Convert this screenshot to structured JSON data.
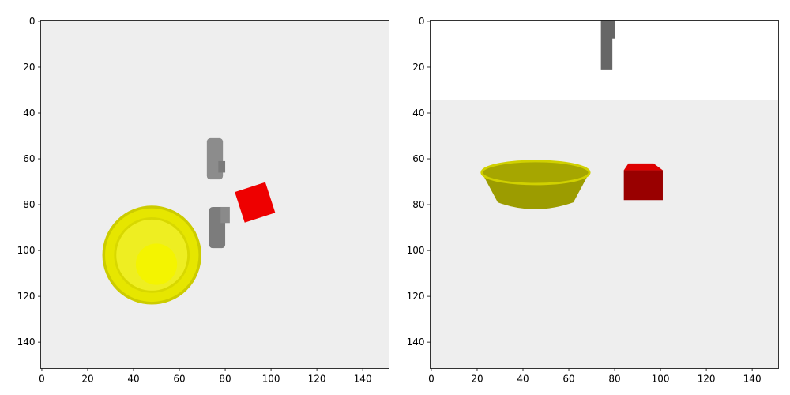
{
  "chart_data": [
    {
      "type": "image",
      "xlim": [
        -0.5,
        151.5
      ],
      "ylim": [
        151.5,
        -0.5
      ],
      "xticks": [
        0,
        20,
        40,
        60,
        80,
        100,
        120,
        140
      ],
      "yticks": [
        0,
        20,
        40,
        60,
        80,
        100,
        120,
        140
      ]
    },
    {
      "type": "image",
      "xlim": [
        -0.5,
        151.5
      ],
      "ylim": [
        151.5,
        -0.5
      ],
      "xticks": [
        0,
        20,
        40,
        60,
        80,
        100,
        120,
        140
      ],
      "yticks": [
        0,
        20,
        40,
        60,
        80,
        100,
        120,
        140
      ]
    }
  ]
}
